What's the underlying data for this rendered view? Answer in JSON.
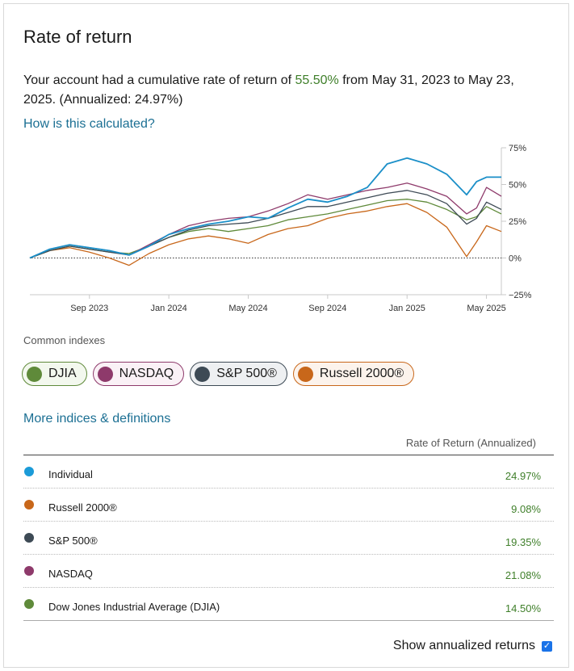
{
  "card": {
    "title": "Rate of return",
    "summary_pre": "Your account had a cumulative rate of return of ",
    "summary_rate": "55.50%",
    "summary_post": " from May 31, 2023 to May 23, 2025. (Annualized: 24.97%)",
    "how_link": "How is this calculated?"
  },
  "chart_data": {
    "type": "line",
    "title": "",
    "x_tick_labels": [
      "Sep 2023",
      "Jan 2024",
      "May 2024",
      "Sep 2024",
      "Jan 2025",
      "May 2025"
    ],
    "y_tick_labels": [
      "75%",
      "50%",
      "25%",
      "0%",
      "−25%"
    ],
    "ylim": [
      -25,
      75
    ],
    "y_ticks": [
      75,
      50,
      25,
      0,
      -25
    ],
    "x_tick_months": [
      3,
      7,
      11,
      15,
      19,
      23
    ],
    "x_range_months": [
      0,
      23.75
    ],
    "baseline": 0,
    "series": [
      {
        "name": "Russell 2000®",
        "color": "#c8671a",
        "x": [
          0,
          1,
          2,
          3,
          4,
          5,
          6,
          7,
          8,
          9,
          10,
          11,
          12,
          13,
          14,
          15,
          16,
          17,
          18,
          19,
          20,
          21,
          22,
          22.5,
          23,
          23.75
        ],
        "y": [
          0,
          5,
          7,
          4,
          0,
          -5,
          3,
          9,
          13,
          15,
          13,
          10,
          16,
          20,
          22,
          27,
          30,
          32,
          35,
          37,
          31,
          21,
          1,
          11,
          22,
          18
        ]
      },
      {
        "name": "DJIA",
        "color": "#5f8a3a",
        "x": [
          0,
          1,
          2,
          3,
          4,
          5,
          6,
          7,
          8,
          9,
          10,
          11,
          12,
          13,
          14,
          15,
          16,
          17,
          18,
          19,
          20,
          21,
          22,
          22.5,
          23,
          23.75
        ],
        "y": [
          0,
          5,
          8,
          6,
          4,
          3,
          8,
          14,
          18,
          20,
          18,
          20,
          22,
          26,
          28,
          30,
          33,
          36,
          39,
          40,
          38,
          33,
          26,
          28,
          35,
          30
        ]
      },
      {
        "name": "NASDAQ",
        "color": "#8e3a6b",
        "x": [
          0,
          1,
          2,
          3,
          4,
          5,
          6,
          7,
          8,
          9,
          10,
          11,
          12,
          13,
          14,
          15,
          16,
          17,
          18,
          19,
          20,
          21,
          22,
          22.5,
          23,
          23.75
        ],
        "y": [
          0,
          6,
          9,
          7,
          5,
          2,
          9,
          16,
          22,
          25,
          27,
          28,
          32,
          37,
          43,
          40,
          43,
          46,
          48,
          51,
          47,
          42,
          30,
          34,
          48,
          42
        ]
      },
      {
        "name": "S&P 500®",
        "color": "#3d4a55",
        "x": [
          0,
          1,
          2,
          3,
          4,
          5,
          6,
          7,
          8,
          9,
          10,
          11,
          12,
          13,
          14,
          15,
          16,
          17,
          18,
          19,
          20,
          21,
          22,
          22.5,
          23,
          23.75
        ],
        "y": [
          0,
          5,
          8,
          6,
          4,
          2,
          8,
          14,
          19,
          22,
          23,
          24,
          27,
          31,
          35,
          35,
          38,
          41,
          44,
          46,
          43,
          37,
          23,
          27,
          38,
          33
        ]
      },
      {
        "name": "Individual",
        "color": "#1b8fc8",
        "x": [
          0,
          1,
          2,
          3,
          4,
          5,
          6,
          7,
          8,
          9,
          10,
          11,
          12,
          13,
          14,
          15,
          16,
          17,
          18,
          19,
          20,
          21,
          22,
          22.5,
          23,
          23.75
        ],
        "y": [
          0,
          6,
          9,
          7,
          5,
          2,
          8,
          16,
          20,
          23,
          25,
          28,
          27,
          34,
          40,
          38,
          42,
          48,
          64,
          68,
          64,
          57,
          43,
          52,
          55,
          55
        ]
      }
    ]
  },
  "indexes": {
    "label": "Common indexes",
    "chips": [
      {
        "label": "DJIA",
        "color": "#5f8a3a",
        "bg": "#f3f8ee",
        "border": "#5f8a3a"
      },
      {
        "label": "NASDAQ",
        "color": "#8e3a6b",
        "bg": "#faf1f6",
        "border": "#8e3a6b"
      },
      {
        "label": "S&P 500®",
        "color": "#3d4a55",
        "bg": "#eef0f2",
        "border": "#3d4a55"
      },
      {
        "label": "Russell 2000®",
        "color": "#c8671a",
        "bg": "#fcf3ec",
        "border": "#c8671a"
      }
    ],
    "more_link": "More indices & definitions"
  },
  "table": {
    "header": "Rate of Return (Annualized)",
    "rows": [
      {
        "name": "Individual",
        "value": "24.97%",
        "color": "#1b9bd8"
      },
      {
        "name": "Russell 2000®",
        "value": "9.08%",
        "color": "#c8671a"
      },
      {
        "name": "S&P 500®",
        "value": "19.35%",
        "color": "#3d4a55"
      },
      {
        "name": "NASDAQ",
        "value": "21.08%",
        "color": "#8e3a6b"
      },
      {
        "name": "Dow Jones Industrial Average (DJIA)",
        "value": "14.50%",
        "color": "#5f8a3a"
      }
    ],
    "annualized_label": "Show annualized returns"
  }
}
